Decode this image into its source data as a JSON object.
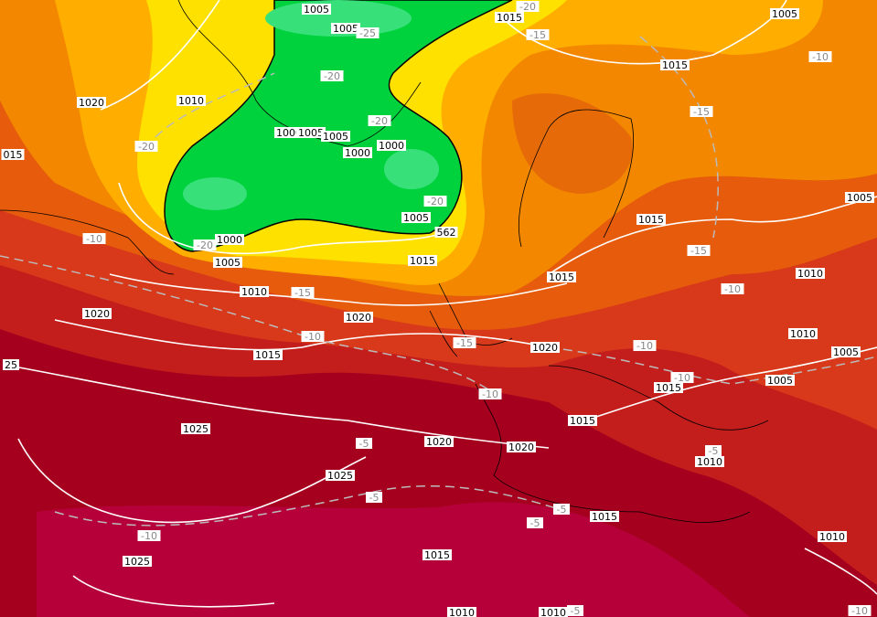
{
  "isobar_labels": [
    "1005",
    "1015",
    "1005",
    "1005",
    "1015",
    "1020",
    "1010",
    "1000",
    "1005",
    "1005",
    "1000",
    "1000",
    "015",
    "1005",
    "1005",
    "1015",
    "562",
    "1000",
    "1005",
    "1015",
    "1010",
    "1015",
    "1010",
    "1020",
    "1020",
    "1010",
    "1015",
    "1020",
    "1005",
    "25",
    "1005",
    "1015",
    "1015",
    "1025",
    "1020",
    "1020",
    "1010",
    "1025",
    "1015",
    "1010",
    "1025",
    "1015",
    "1010",
    "1010"
  ],
  "temperature_labels": [
    "-20",
    "-25",
    "-15",
    "-10",
    "-20",
    "-15",
    "-20",
    "-20",
    "-20",
    "-10",
    "-20",
    "-15",
    "-15",
    "-10",
    "-10",
    "-15",
    "-10",
    "-10",
    "-10",
    "-5",
    "-5",
    "-5",
    "-5",
    "-5",
    "-10",
    "-5",
    "-10"
  ]
}
